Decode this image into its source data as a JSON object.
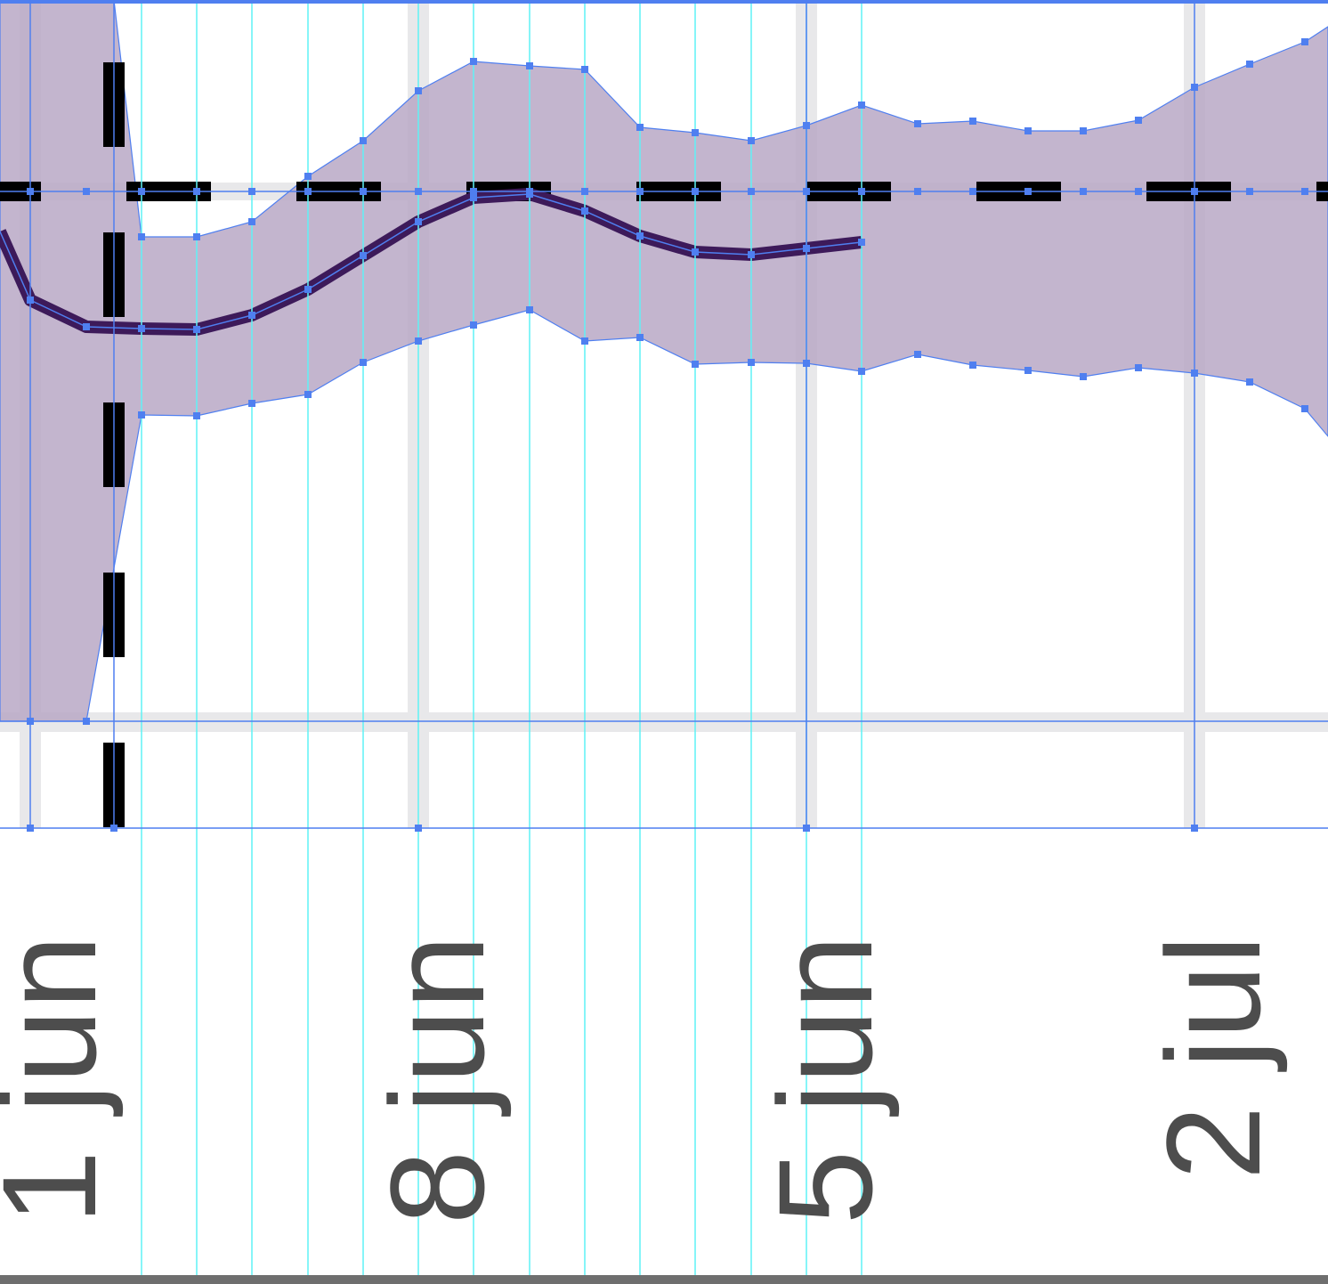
{
  "canvas": {
    "labels": [
      "1 jun",
      "8 jun",
      "5 jun",
      "2 jul"
    ]
  }
}
